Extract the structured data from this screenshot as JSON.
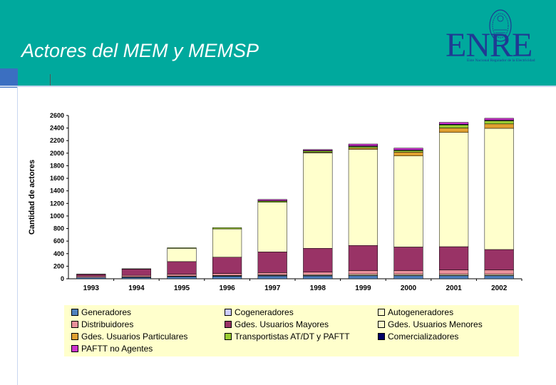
{
  "slide": {
    "title": "Actores del MEM y MEMSP",
    "logo_text": "ENRE",
    "logo_subtitle": "Ente Nacional Regulador de la Electricidad"
  },
  "colors": {
    "header": "#00a99d",
    "accent_block": "#3b6fc1",
    "legend_bg": "#ffffcc"
  },
  "chart_data": {
    "type": "bar",
    "stacked": true,
    "ylabel": "Cantidad de actores",
    "xlabel": "",
    "ylim": [
      0,
      2600
    ],
    "yticks": [
      0,
      200,
      400,
      600,
      800,
      1000,
      1200,
      1400,
      1600,
      1800,
      2000,
      2200,
      2400,
      2600
    ],
    "grid": false,
    "legend_position": "bottom",
    "categories": [
      "1993",
      "1994",
      "1995",
      "1996",
      "1997",
      "1998",
      "1999",
      "2000",
      "2001",
      "2002"
    ],
    "series": [
      {
        "name": "Generadores",
        "color": "#4f81bd",
        "values": [
          20,
          25,
          35,
          40,
          45,
          45,
          48,
          48,
          48,
          48
        ]
      },
      {
        "name": "Cogeneradores",
        "color": "#ccccff",
        "values": [
          0,
          2,
          4,
          6,
          8,
          8,
          8,
          8,
          8,
          8
        ]
      },
      {
        "name": "Autogeneradores",
        "color": "#ffffcc",
        "values": [
          0,
          3,
          5,
          8,
          10,
          12,
          15,
          15,
          15,
          15
        ]
      },
      {
        "name": "Distribuidores",
        "color": "#e8909a",
        "values": [
          20,
          25,
          30,
          30,
          35,
          40,
          60,
          60,
          70,
          70
        ]
      },
      {
        "name": "Gdes. Usuarios Mayores",
        "color": "#993366",
        "values": [
          30,
          100,
          200,
          260,
          330,
          380,
          400,
          375,
          370,
          325
        ]
      },
      {
        "name": "Gdes. Usuarios Menores",
        "color": "#ffffcc",
        "values": [
          0,
          0,
          210,
          450,
          790,
          1520,
          1530,
          1450,
          1820,
          1930
        ]
      },
      {
        "name": "Gdes. Usuarios Particulares",
        "color": "#e0a030",
        "values": [
          0,
          0,
          0,
          0,
          0,
          10,
          20,
          60,
          70,
          70
        ]
      },
      {
        "name": "Transportistas AT/DT y PAFTT",
        "color": "#9acd32",
        "values": [
          5,
          5,
          10,
          20,
          20,
          20,
          25,
          25,
          50,
          50
        ]
      },
      {
        "name": "Comercializadores",
        "color": "#000066",
        "values": [
          0,
          0,
          0,
          0,
          5,
          8,
          10,
          10,
          10,
          10
        ]
      },
      {
        "name": "PAFTT no Agentes",
        "color": "#cc33cc",
        "values": [
          0,
          0,
          0,
          0,
          20,
          15,
          30,
          30,
          30,
          30
        ]
      }
    ]
  }
}
